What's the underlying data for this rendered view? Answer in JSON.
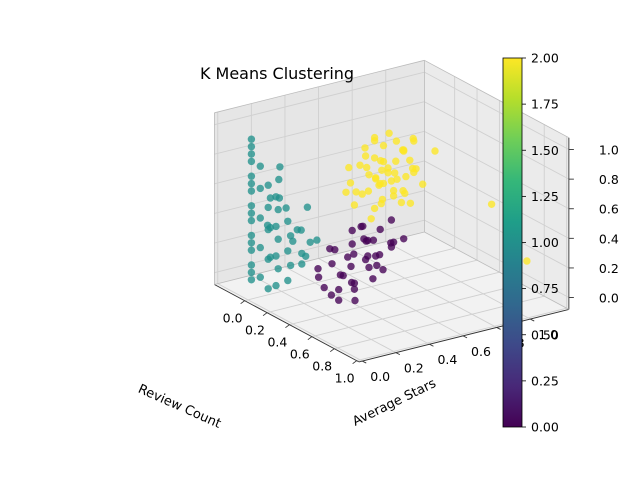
{
  "chart_data": {
    "type": "scatter",
    "projection": "3d",
    "title": "K Means Clustering",
    "xlabel": "Review Count",
    "ylabel": "Average Stars",
    "zlabel": "",
    "xlim": [
      0.0,
      1.0
    ],
    "ylim": [
      0.0,
      1.0
    ],
    "zlim": [
      0.0,
      1.0
    ],
    "x_ticks": [
      "0.0",
      "0.2",
      "0.4",
      "0.6",
      "0.8",
      "1.0"
    ],
    "y_ticks": [
      "0.0",
      "0.2",
      "0.4",
      "0.6",
      "0.8",
      "1.0"
    ],
    "z_ticks": [
      "0.0",
      "0.2",
      "0.4",
      "0.6",
      "0.8",
      "1.0"
    ],
    "grid": true,
    "colorbar": {
      "colormap": "viridis",
      "min": 0.0,
      "max": 2.0,
      "ticks": [
        "0.00",
        "0.25",
        "0.50",
        "0.75",
        "1.00",
        "1.25",
        "1.50",
        "1.75",
        "2.00"
      ],
      "colors": [
        "#440154",
        "#482878",
        "#3e4989",
        "#31688e",
        "#26828e",
        "#1f9e89",
        "#35b779",
        "#6ece58",
        "#b5de2b",
        "#fde725"
      ]
    },
    "clusters": [
      {
        "label": 0,
        "color": "#440154",
        "points": [
          [
            0.38,
            0.2,
            0.1
          ],
          [
            0.45,
            0.25,
            0.2
          ],
          [
            0.5,
            0.3,
            0.15
          ],
          [
            0.42,
            0.35,
            0.3
          ],
          [
            0.55,
            0.2,
            0.25
          ],
          [
            0.6,
            0.3,
            0.35
          ],
          [
            0.48,
            0.4,
            0.22
          ],
          [
            0.36,
            0.3,
            0.05
          ],
          [
            0.52,
            0.15,
            0.12
          ],
          [
            0.4,
            0.25,
            0.35
          ],
          [
            0.58,
            0.38,
            0.28
          ],
          [
            0.62,
            0.22,
            0.18
          ],
          [
            0.46,
            0.18,
            0.4
          ],
          [
            0.35,
            0.38,
            0.18
          ],
          [
            0.56,
            0.33,
            0.45
          ],
          [
            0.44,
            0.42,
            0.38
          ],
          [
            0.65,
            0.28,
            0.4
          ],
          [
            0.5,
            0.45,
            0.3
          ],
          [
            0.4,
            0.15,
            0.25
          ],
          [
            0.3,
            0.3,
            0.2
          ],
          [
            0.55,
            0.42,
            0.5
          ],
          [
            0.68,
            0.35,
            0.3
          ],
          [
            0.38,
            0.42,
            0.45
          ],
          [
            0.48,
            0.22,
            0.05
          ],
          [
            0.6,
            0.45,
            0.42
          ],
          [
            0.45,
            0.32,
            0.48
          ],
          [
            0.53,
            0.5,
            0.35
          ],
          [
            0.33,
            0.2,
            0.15
          ],
          [
            0.58,
            0.25,
            0.08
          ],
          [
            0.7,
            0.4,
            0.48
          ],
          [
            0.42,
            0.48,
            0.25
          ],
          [
            0.5,
            0.35,
            0.52
          ],
          [
            0.64,
            0.5,
            0.45
          ],
          [
            0.36,
            0.45,
            0.35
          ],
          [
            0.47,
            0.28,
            0.32
          ],
          [
            0.56,
            0.48,
            0.55
          ],
          [
            0.4,
            0.35,
            0.1
          ],
          [
            0.52,
            0.4,
            0.42
          ],
          [
            0.62,
            0.33,
            0.22
          ],
          [
            0.3,
            0.42,
            0.3
          ]
        ]
      },
      {
        "label": 1,
        "color": "#21918c",
        "points": [
          [
            0.0,
            0.02,
            0.05
          ],
          [
            0.0,
            0.02,
            0.15
          ],
          [
            0.0,
            0.02,
            0.25
          ],
          [
            0.0,
            0.02,
            0.35
          ],
          [
            0.0,
            0.02,
            0.45
          ],
          [
            0.0,
            0.02,
            0.55
          ],
          [
            0.0,
            0.02,
            0.65
          ],
          [
            0.0,
            0.02,
            0.75
          ],
          [
            0.0,
            0.02,
            0.85
          ],
          [
            0.0,
            0.02,
            0.95
          ],
          [
            0.0,
            0.02,
            1.0
          ],
          [
            0.0,
            0.02,
            0.1
          ],
          [
            0.0,
            0.02,
            0.3
          ],
          [
            0.0,
            0.02,
            0.5
          ],
          [
            0.0,
            0.02,
            0.7
          ],
          [
            0.0,
            0.02,
            0.9
          ],
          [
            0.08,
            0.02,
            0.1
          ],
          [
            0.08,
            0.02,
            0.3
          ],
          [
            0.08,
            0.02,
            0.5
          ],
          [
            0.08,
            0.02,
            0.7
          ],
          [
            0.08,
            0.02,
            0.85
          ],
          [
            0.15,
            0.02,
            0.05
          ],
          [
            0.15,
            0.02,
            0.25
          ],
          [
            0.15,
            0.02,
            0.45
          ],
          [
            0.15,
            0.02,
            0.6
          ],
          [
            0.15,
            0.02,
            0.75
          ],
          [
            0.22,
            0.02,
            0.1
          ],
          [
            0.22,
            0.02,
            0.3
          ],
          [
            0.22,
            0.02,
            0.5
          ],
          [
            0.22,
            0.02,
            0.7
          ],
          [
            0.05,
            0.1,
            0.2
          ],
          [
            0.05,
            0.1,
            0.4
          ],
          [
            0.05,
            0.1,
            0.6
          ],
          [
            0.12,
            0.1,
            0.15
          ],
          [
            0.12,
            0.1,
            0.35
          ],
          [
            0.12,
            0.1,
            0.55
          ],
          [
            0.2,
            0.12,
            0.2
          ],
          [
            0.2,
            0.12,
            0.4
          ],
          [
            0.28,
            0.05,
            0.15
          ],
          [
            0.28,
            0.05,
            0.35
          ],
          [
            0.28,
            0.05,
            0.55
          ],
          [
            0.1,
            0.2,
            0.3
          ],
          [
            0.18,
            0.2,
            0.25
          ],
          [
            0.25,
            0.15,
            0.45
          ],
          [
            0.3,
            0.12,
            0.25
          ],
          [
            0.32,
            0.08,
            0.5
          ],
          [
            0.06,
            0.15,
            0.8
          ],
          [
            0.16,
            0.08,
            0.65
          ],
          [
            0.26,
            0.18,
            0.6
          ],
          [
            0.33,
            0.15,
            0.4
          ],
          [
            0.1,
            0.05,
            0.45
          ],
          [
            0.2,
            0.05,
            0.8
          ],
          [
            0.04,
            0.2,
            0.5
          ],
          [
            0.14,
            0.25,
            0.2
          ],
          [
            0.24,
            0.25,
            0.35
          ]
        ]
      },
      {
        "label": 2,
        "color": "#fde725",
        "points": [
          [
            0.2,
            0.5,
            0.5
          ],
          [
            0.25,
            0.55,
            0.6
          ],
          [
            0.3,
            0.6,
            0.55
          ],
          [
            0.22,
            0.65,
            0.7
          ],
          [
            0.28,
            0.7,
            0.65
          ],
          [
            0.35,
            0.6,
            0.75
          ],
          [
            0.18,
            0.58,
            0.8
          ],
          [
            0.32,
            0.52,
            0.45
          ],
          [
            0.26,
            0.75,
            0.55
          ],
          [
            0.38,
            0.68,
            0.6
          ],
          [
            0.15,
            0.62,
            0.65
          ],
          [
            0.3,
            0.8,
            0.7
          ],
          [
            0.24,
            0.45,
            0.68
          ],
          [
            0.36,
            0.55,
            0.85
          ],
          [
            0.2,
            0.72,
            0.6
          ],
          [
            0.28,
            0.62,
            0.9
          ],
          [
            0.34,
            0.74,
            0.5
          ],
          [
            0.4,
            0.6,
            0.65
          ],
          [
            0.18,
            0.48,
            0.75
          ],
          [
            0.26,
            0.58,
            0.82
          ],
          [
            0.32,
            0.66,
            0.72
          ],
          [
            0.22,
            0.78,
            0.8
          ],
          [
            0.38,
            0.5,
            0.55
          ],
          [
            0.3,
            0.48,
            0.62
          ],
          [
            0.14,
            0.55,
            0.55
          ],
          [
            0.42,
            0.7,
            0.78
          ],
          [
            0.24,
            0.68,
            0.95
          ],
          [
            0.36,
            0.8,
            0.62
          ],
          [
            0.2,
            0.62,
            0.9
          ],
          [
            0.3,
            0.72,
            0.85
          ],
          [
            0.28,
            0.52,
            0.78
          ],
          [
            0.34,
            0.58,
            0.68
          ],
          [
            0.16,
            0.7,
            0.72
          ],
          [
            0.4,
            0.52,
            0.72
          ],
          [
            0.22,
            0.55,
            0.88
          ],
          [
            0.35,
            0.65,
            0.95
          ],
          [
            0.25,
            0.82,
            0.65
          ],
          [
            0.44,
            0.62,
            0.58
          ],
          [
            0.2,
            0.45,
            0.6
          ],
          [
            0.32,
            0.75,
            0.78
          ],
          [
            0.1,
            0.6,
            0.7
          ],
          [
            0.12,
            0.68,
            0.6
          ],
          [
            0.38,
            0.58,
            0.8
          ],
          [
            0.26,
            0.62,
            0.5
          ],
          [
            0.3,
            0.56,
            0.7
          ],
          [
            0.24,
            0.72,
            0.75
          ],
          [
            0.36,
            0.7,
            0.7
          ],
          [
            0.18,
            0.66,
            0.58
          ],
          [
            0.28,
            0.8,
            0.88
          ],
          [
            0.4,
            0.66,
            0.9
          ],
          [
            0.2,
            0.85,
            0.85
          ],
          [
            0.32,
            0.9,
            0.8
          ],
          [
            0.08,
            0.7,
            0.85
          ],
          [
            0.46,
            0.56,
            0.65
          ],
          [
            0.75,
            0.95,
            0.6
          ],
          [
            0.85,
            1.0,
            0.45
          ],
          [
            0.95,
            0.95,
            0.4
          ],
          [
            0.99,
            1.0,
            0.3
          ]
        ]
      }
    ]
  }
}
